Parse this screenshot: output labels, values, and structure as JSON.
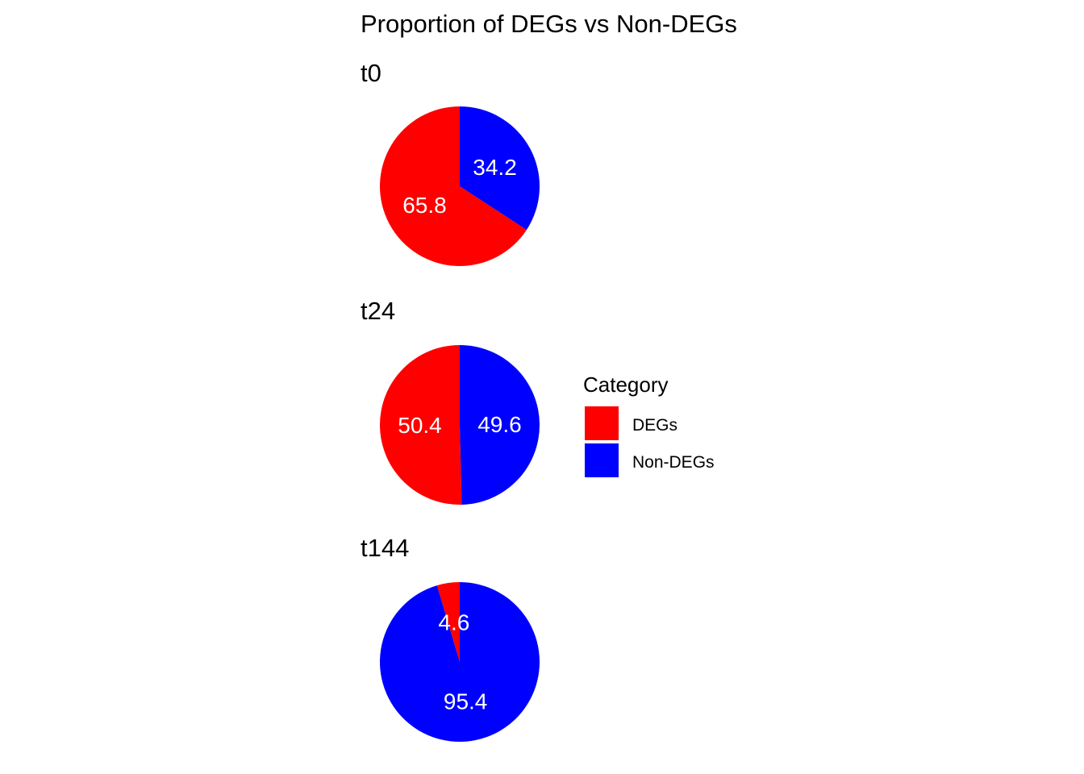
{
  "chart_data": {
    "type": "pie",
    "title": "Proportion of DEGs vs Non-DEGs",
    "legend": {
      "title": "Category",
      "position": "right",
      "entries": [
        {
          "name": "DEGs",
          "color": "#ff0000"
        },
        {
          "name": "Non-DEGs",
          "color": "#0000ff"
        }
      ]
    },
    "panels": [
      {
        "label": "t0",
        "slices": [
          {
            "category": "DEGs",
            "value": 65.8,
            "label": "65.8"
          },
          {
            "category": "Non-DEGs",
            "value": 34.2,
            "label": "34.2"
          }
        ]
      },
      {
        "label": "t24",
        "slices": [
          {
            "category": "DEGs",
            "value": 50.4,
            "label": "50.4"
          },
          {
            "category": "Non-DEGs",
            "value": 49.6,
            "label": "49.6"
          }
        ]
      },
      {
        "label": "t144",
        "slices": [
          {
            "category": "DEGs",
            "value": 4.6,
            "label": "4.6"
          },
          {
            "category": "Non-DEGs",
            "value": 95.4,
            "label": "95.4"
          }
        ]
      }
    ]
  }
}
